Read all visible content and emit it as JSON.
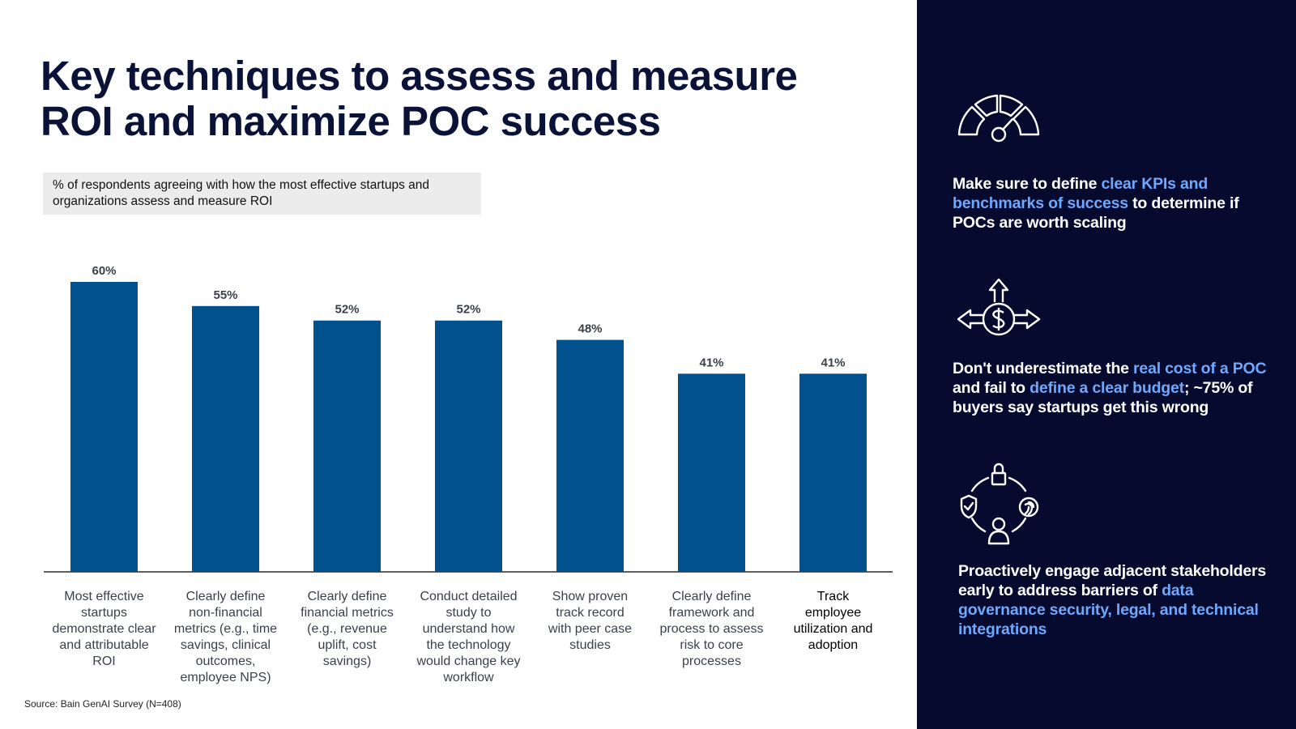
{
  "title": {
    "line1": "Key techniques to assess and measure",
    "line2": "ROI and maximize POC success"
  },
  "subtitle": {
    "line1": "% of respondents agreeing with how the most effective startups and",
    "line2": "organizations assess and measure ROI"
  },
  "source": "Source: Bain GenAI Survey (N=408)",
  "colors": {
    "bar": "#02518f",
    "panel_bg": "#050a2e",
    "highlight": "#6fa8ff",
    "title": "#0b1238"
  },
  "chart_data": {
    "type": "bar",
    "title": "% of respondents agreeing with how the most effective startups and organizations assess and measure ROI",
    "xlabel": "",
    "ylabel": "",
    "ylim": [
      0,
      60
    ],
    "grid": false,
    "categories": [
      [
        "Most effective",
        "startups",
        "demonstrate clear",
        "and attributable",
        "ROI"
      ],
      [
        "Clearly define",
        "non-financial",
        "metrics (e.g., time",
        "savings, clinical",
        "outcomes,",
        "employee NPS)"
      ],
      [
        "Clearly define",
        "financial metrics",
        "(e.g., revenue",
        "uplift, cost",
        "savings)"
      ],
      [
        "Conduct detailed",
        "study to",
        "understand how",
        "the technology",
        "would change key",
        "workflow"
      ],
      [
        "Show proven",
        "track record",
        "with peer case",
        "studies"
      ],
      [
        "Clearly define",
        "framework and",
        "process to assess",
        "risk to core",
        "processes"
      ],
      [
        "Track",
        "employee",
        "utilization and",
        "adoption"
      ]
    ],
    "values": [
      60,
      55,
      52,
      52,
      48,
      41,
      41
    ],
    "labels": [
      "60%",
      "55%",
      "52%",
      "52%",
      "48%",
      "41%",
      "41%"
    ]
  },
  "sidebar": {
    "tips": [
      {
        "icon": "gauge-icon",
        "parts": [
          {
            "text": "Make sure to define ",
            "hl": false
          },
          {
            "text": "clear KPIs and benchmarks of success",
            "hl": true
          },
          {
            "text": " to determine if POCs are worth scaling",
            "hl": false
          }
        ]
      },
      {
        "icon": "dollar-arrows-icon",
        "parts": [
          {
            "text": "Don't underestimate the ",
            "hl": false
          },
          {
            "text": "real cost of a POC",
            "hl": true
          },
          {
            "text": " and fail to ",
            "hl": false
          },
          {
            "text": "define a clear budget",
            "hl": true
          },
          {
            "text": "; ~75% of buyers say startups get this wrong",
            "hl": false
          }
        ]
      },
      {
        "icon": "security-cycle-icon",
        "parts": [
          {
            "text": "Proactively engage adjacent stakeholders early to address barriers of ",
            "hl": false
          },
          {
            "text": "data governance security, legal, and technical integrations",
            "hl": true
          }
        ]
      }
    ]
  }
}
